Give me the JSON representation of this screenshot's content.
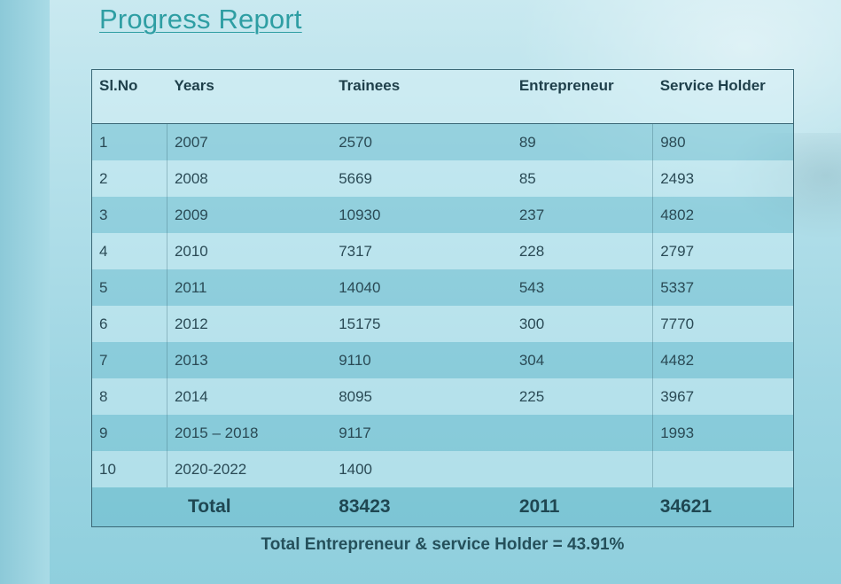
{
  "title": "Progress Report",
  "table": {
    "headers": [
      "Sl.No",
      "Years",
      "Trainees",
      "Entrepreneur",
      "Service Holder"
    ],
    "rows": [
      [
        "1",
        "2007",
        "2570",
        "89",
        "980"
      ],
      [
        "2",
        "2008",
        "5669",
        "85",
        "2493"
      ],
      [
        "3",
        "2009",
        "10930",
        "237",
        "4802"
      ],
      [
        "4",
        "2010",
        "7317",
        "228",
        "2797"
      ],
      [
        "5",
        "2011",
        "14040",
        "543",
        "5337"
      ],
      [
        "6",
        "2012",
        "15175",
        "300",
        "7770"
      ],
      [
        "7",
        "2013",
        "9110",
        "304",
        "4482"
      ],
      [
        "8",
        "2014",
        "8095",
        "225",
        "3967"
      ],
      [
        "9",
        "2015 – 2018",
        "9117",
        "",
        "1993"
      ],
      [
        "10",
        "2020-2022",
        "1400",
        "",
        ""
      ]
    ],
    "total": {
      "label": "Total",
      "trainees": "83423",
      "entrepreneur": "2011",
      "service_holder": "34621"
    }
  },
  "footer": "Total Entrepreneur & service Holder = 43.91%"
}
